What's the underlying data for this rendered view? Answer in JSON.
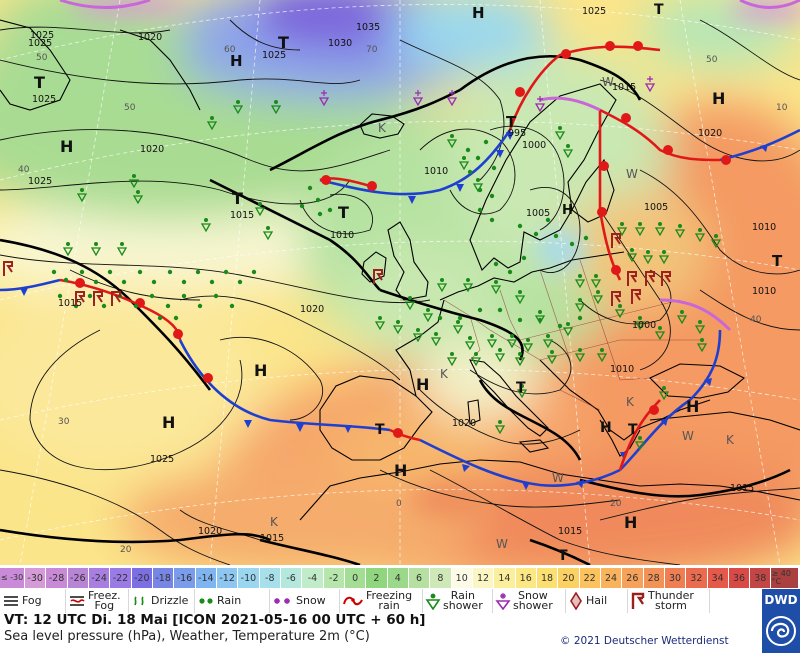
{
  "labels": {
    "highs": [
      "H",
      "H",
      "H",
      "H",
      "H",
      "H",
      "H",
      "H",
      "H",
      "H",
      "H",
      "H"
    ],
    "lows": [
      "T",
      "T",
      "T",
      "T",
      "T",
      "T",
      "T",
      "T",
      "T",
      "T",
      "T"
    ],
    "k_marks": [
      "K",
      "K",
      "K",
      "K",
      "K"
    ],
    "w_marks": [
      "W",
      "W",
      "W",
      "W",
      "W"
    ],
    "isobars": [
      "1025",
      "1025",
      "1035",
      "1030",
      "1025",
      "1025",
      "1020",
      "1020",
      "1025",
      "1015",
      "1010",
      "1010",
      "1000",
      "995",
      "1015",
      "1020",
      "1025",
      "1005",
      "1010",
      "1005",
      "1010",
      "1000",
      "1010",
      "1015",
      "1020",
      "1020",
      "1015",
      "1015",
      "1015"
    ],
    "temps": [
      "50",
      "60",
      "70",
      "50",
      "40",
      "50",
      "40",
      "30",
      "20",
      "0",
      "20",
      "10"
    ]
  },
  "scale": {
    "values": [
      "≤ -30",
      "-30",
      "-28",
      "-26",
      "-24",
      "-22",
      "-20",
      "-18",
      "-16",
      "-14",
      "-12",
      "-10",
      "-8",
      "-6",
      "-4",
      "-2",
      "0",
      "2",
      "4",
      "6",
      "8",
      "10",
      "12",
      "14",
      "16",
      "18",
      "20",
      "22",
      "24",
      "26",
      "28",
      "30",
      "32",
      "34",
      "36",
      "38",
      "≥ 40 °C"
    ],
    "colors": [
      "#c98ad8",
      "#d59ad8",
      "#c88ad6",
      "#b884d6",
      "#a87fe0",
      "#9a7be6",
      "#7c6ee3",
      "#7786e5",
      "#7b9cea",
      "#7eb4ef",
      "#8cc6f1",
      "#9ad6f0",
      "#a7e0ea",
      "#b4e8dc",
      "#c0ecc9",
      "#b6e6ab",
      "#a4de95",
      "#8fd67f",
      "#9ad88a",
      "#b5e0a2",
      "#cfe8b8",
      "#fbfbe6",
      "#fbf6c3",
      "#fbef9c",
      "#fbe783",
      "#fbdf70",
      "#fbd164",
      "#fbc25e",
      "#f9b35c",
      "#f6a25a",
      "#f39257",
      "#ef7f52",
      "#ea6b4e",
      "#e4594a",
      "#d94a47",
      "#c44545",
      "#aa4040"
    ]
  },
  "legend": [
    {
      "icon": "fog-icon",
      "label": "Fog"
    },
    {
      "icon": "freezing-fog-icon",
      "label": "Freez.\nFog"
    },
    {
      "icon": "drizzle-icon",
      "label": "Drizzle"
    },
    {
      "icon": "rain-icon",
      "label": "Rain"
    },
    {
      "icon": "snow-icon",
      "label": "Snow"
    },
    {
      "icon": "freezing-rain-icon",
      "label": "Freezing\nrain"
    },
    {
      "icon": "rain-shower-icon",
      "label": "Rain\nshower"
    },
    {
      "icon": "snow-shower-icon",
      "label": "Snow\nshower"
    },
    {
      "icon": "hail-icon",
      "label": "Hail"
    },
    {
      "icon": "thunderstorm-icon",
      "label": "Thunder\nstorm"
    }
  ],
  "footer": {
    "valid_time": "VT: 12 UTC Di.  18 Mai [ICON 2021-05-16  00 UTC + 60 h]",
    "description": "Sea level pressure (hPa), Weather, Temperature 2m (°C)",
    "copyright": "© 2021 Deutscher Wetterdienst",
    "logo_text": "DWD"
  },
  "colors": {
    "cold_front": "#1e3fd0",
    "warm_front": "#e01818",
    "occlusion": "#c867d8",
    "isobar": "#111111",
    "land_border": "#000000"
  }
}
